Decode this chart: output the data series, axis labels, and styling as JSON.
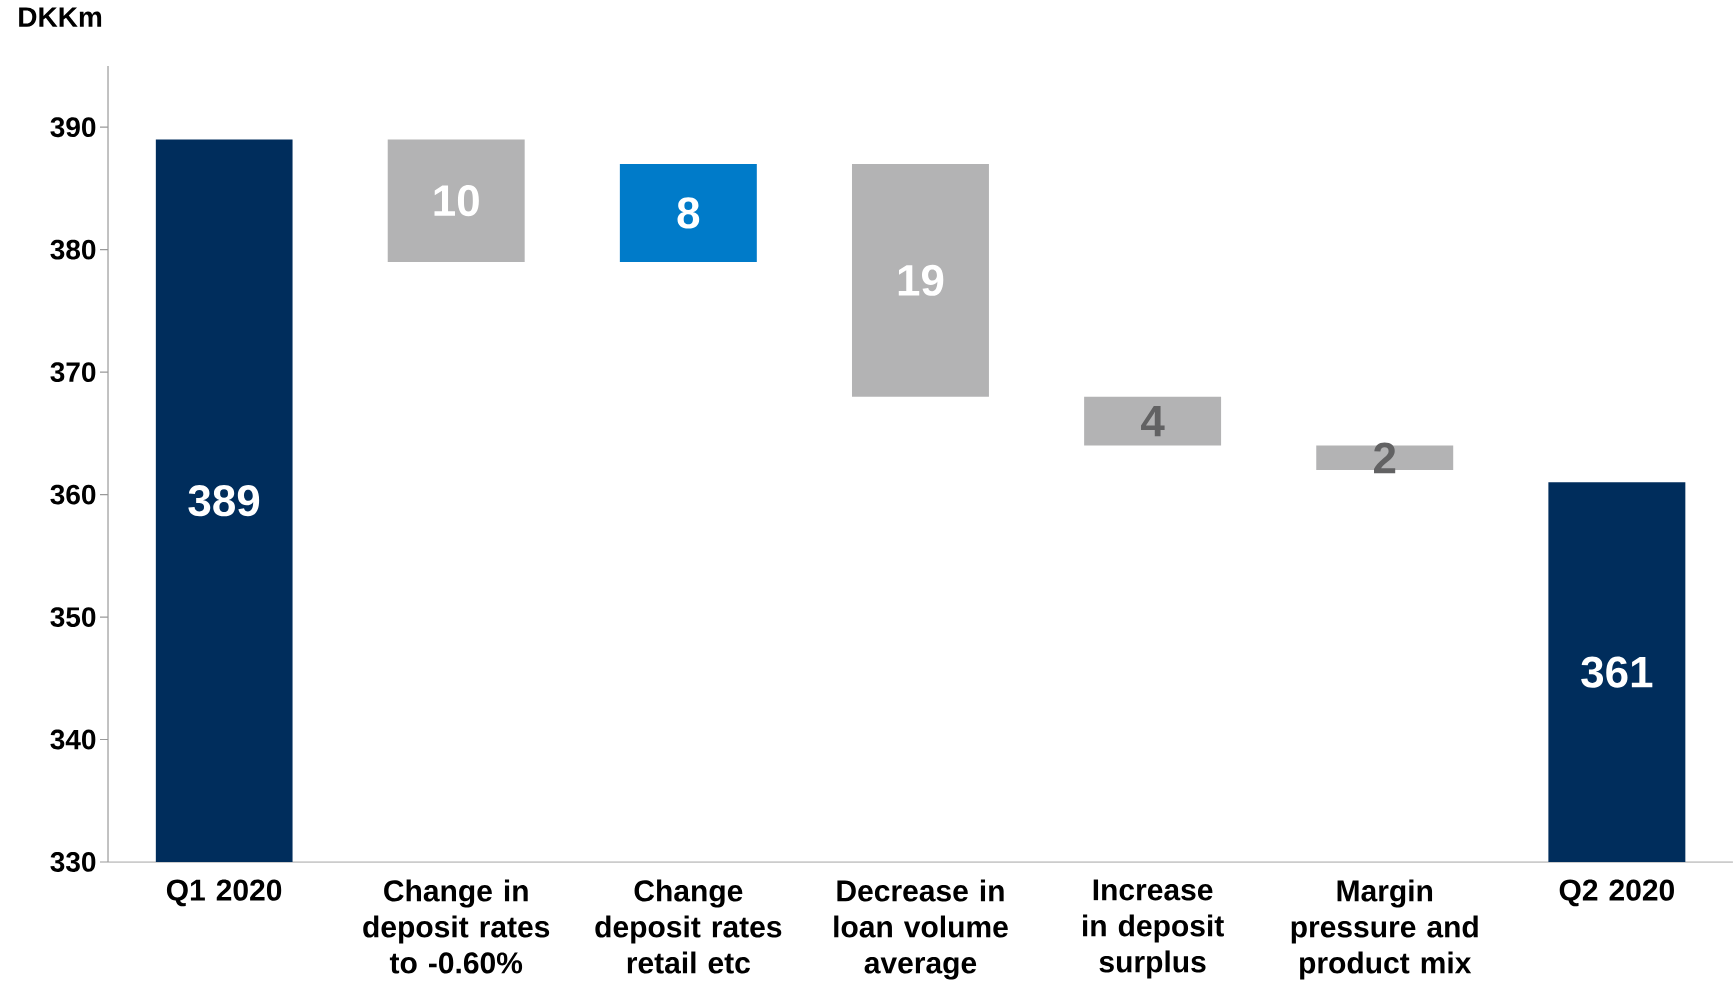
{
  "chart_data": {
    "type": "bar",
    "ylabel": "DKKm",
    "categories": [
      "Q1 2020",
      "Change in deposit rates to -0.60%",
      "Change deposit rates retail etc",
      "Decrease in loan volume average",
      "Increase in deposit surplus",
      "Margin pressure and product mix",
      "Q2 2020"
    ],
    "base": [
      330,
      379,
      379,
      368,
      364,
      362,
      330
    ],
    "values": [
      59,
      10,
      8,
      19,
      4,
      2,
      31
    ],
    "value_labels": [
      "389",
      "10",
      "8",
      "19",
      "4",
      "2",
      "361"
    ],
    "colors": [
      "#002d5c",
      "#b3b3b4",
      "#007bc9",
      "#b3b3b4",
      "#b3b3b4",
      "#b3b3b4",
      "#002d5c"
    ],
    "ylim": [
      330,
      395
    ],
    "yticks": [
      330,
      340,
      350,
      360,
      370,
      380,
      390
    ],
    "grid": false
  }
}
